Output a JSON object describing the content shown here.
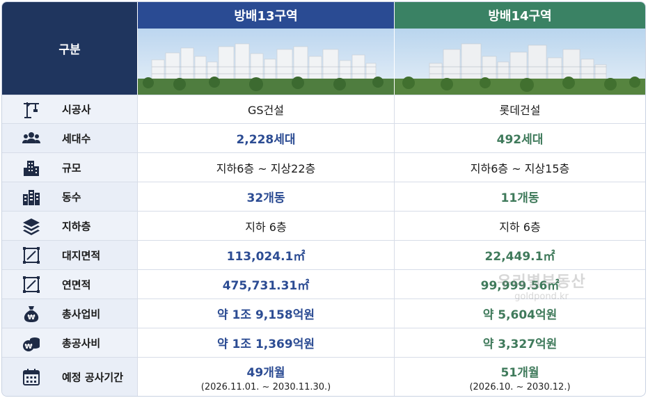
{
  "header": {
    "label": "구분",
    "col1": "방배13구역",
    "col2": "방배14구역"
  },
  "colors": {
    "navy": "#1f355e",
    "col1_header": "#2a4b93",
    "col2_header": "#3a8264",
    "blue_value": "#2c4c93",
    "green_value": "#3f7a5b"
  },
  "rows": [
    {
      "icon": "crane-icon",
      "label": "시공사",
      "col1": "GS건설",
      "col2": "롯데건설"
    },
    {
      "icon": "people-icon",
      "label": "세대수",
      "col1": "2,228세대",
      "col2": "492세대"
    },
    {
      "icon": "building-icon",
      "label": "규모",
      "col1": "지하6층 ~ 지상22층",
      "col2": "지하6층 ~ 지상15층"
    },
    {
      "icon": "buildings-icon",
      "label": "동수",
      "col1": "32개동",
      "col2": "11개동"
    },
    {
      "icon": "layers-icon",
      "label": "지하층",
      "col1": "지하 6층",
      "col2": "지하 6층"
    },
    {
      "icon": "area-icon",
      "label": "대지면적",
      "col1": "113,024.1㎡",
      "col2": "22,449.1㎡"
    },
    {
      "icon": "area-icon",
      "label": "연면적",
      "col1": "475,731.31㎡",
      "col2": "99,999.56㎡"
    },
    {
      "icon": "money-bag-icon",
      "label": "총사업비",
      "col1": "약 1조 9,158억원",
      "col2": "약 5,604억원"
    },
    {
      "icon": "coins-icon",
      "label": "총공사비",
      "col1": "약 1조 1,369억원",
      "col2": "약 3,327억원"
    },
    {
      "icon": "calendar-icon",
      "label": "예정 공사기간",
      "col1": "49개월",
      "col1_sub": "(2026.11.01. ~ 2030.11.30.)",
      "col2": "51개월",
      "col2_sub": "(2026.10. ~ 2030.12.)"
    }
  ],
  "watermark": {
    "line1": "우리별부동산",
    "line2": "goldpond.kr"
  }
}
